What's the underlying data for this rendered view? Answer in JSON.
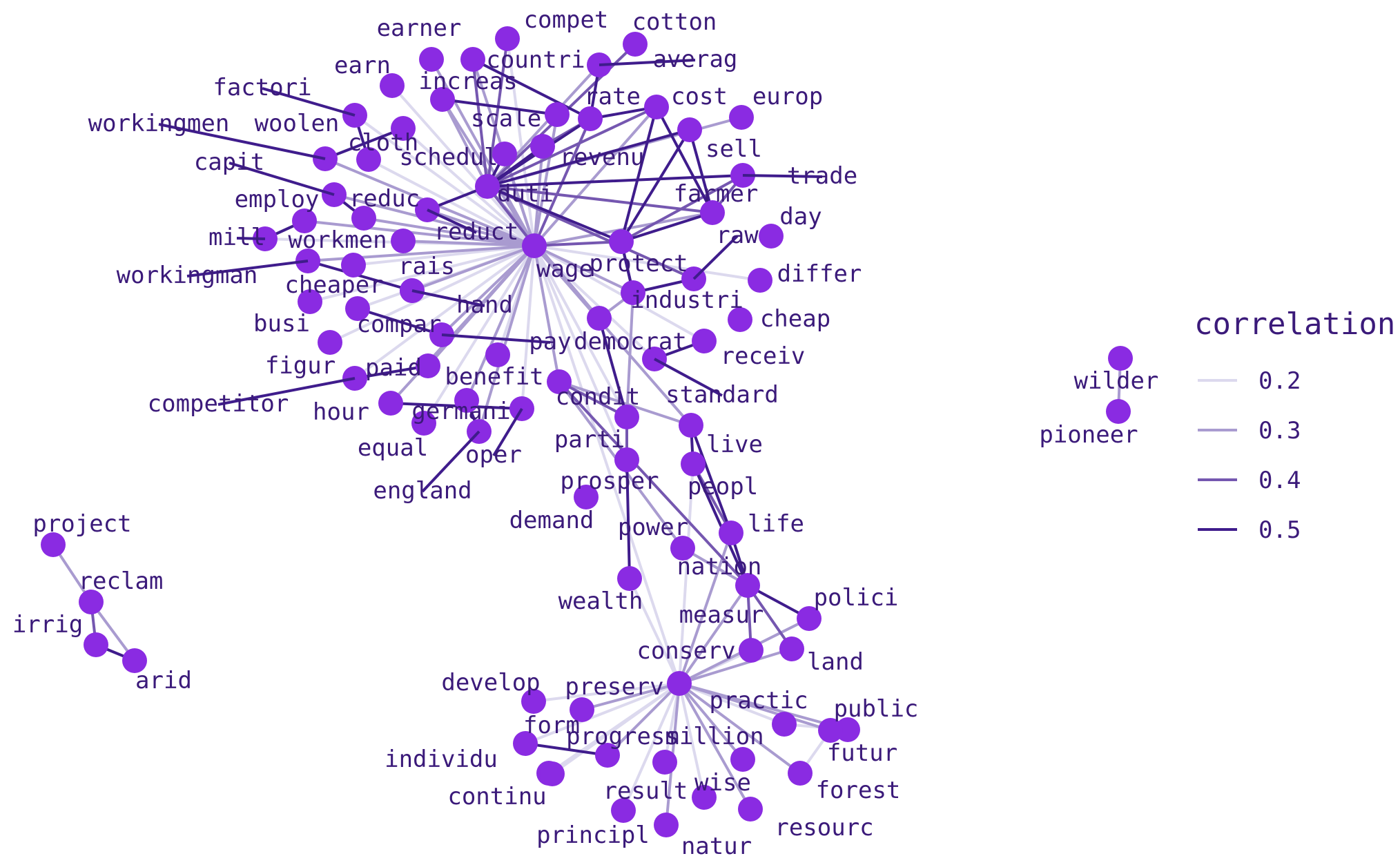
{
  "colors": {
    "node": "#8a2be2",
    "label": "#3b1a7a",
    "edge_levels": [
      "#dcd9ee",
      "#a99bd0",
      "#7557b0",
      "#3f1c8c"
    ]
  },
  "legend": {
    "title": "correlation",
    "entries": [
      {
        "value": 0.2,
        "label": "0.2"
      },
      {
        "value": 0.3,
        "label": "0.3"
      },
      {
        "value": 0.4,
        "label": "0.4"
      },
      {
        "value": 0.5,
        "label": "0.5"
      }
    ]
  },
  "nodes": [
    "earner",
    "compet",
    "cotton",
    "countri",
    "averag",
    "earn",
    "increas",
    "factori",
    "scale",
    "rate",
    "cost",
    "europ",
    "workingmen",
    "woolen",
    "cloth",
    "schedul",
    "revenu",
    "sell",
    "capit",
    "trade",
    "duti",
    "farmer",
    "reduc",
    "employ",
    "reduct",
    "day",
    "mill",
    "workmen",
    "raw",
    "wage",
    "protect",
    "workingman",
    "rais",
    "differ",
    "cheaper",
    "industri",
    "hand",
    "busi",
    "compar",
    "cheap",
    "pay",
    "democrat",
    "figur",
    "paid",
    "receiv",
    "benefit",
    "competitor",
    "standard",
    "condit",
    "hour",
    "germani",
    "parti",
    "live",
    "equal",
    "oper",
    "england",
    "prosper",
    "peopl",
    "demand",
    "power",
    "life",
    "nation",
    "wealth",
    "polici",
    "measur",
    "land",
    "conserv",
    "develop",
    "preserv",
    "practic",
    "public",
    "form",
    "progress",
    "million",
    "individu",
    "futur",
    "continu",
    "result",
    "wise",
    "forest",
    "principl",
    "resourc",
    "natur",
    "project",
    "reclam",
    "irrig",
    "arid",
    "wilder",
    "pioneer"
  ],
  "edges": [
    [
      "wage",
      "earner",
      0.25
    ],
    [
      "wage",
      "earn",
      0.22
    ],
    [
      "wage",
      "factori",
      0.24
    ],
    [
      "wage",
      "workingmen",
      0.28
    ],
    [
      "wage",
      "woolen",
      0.22
    ],
    [
      "wage",
      "cloth",
      0.24
    ],
    [
      "wage",
      "capit",
      0.26
    ],
    [
      "wage",
      "reduc",
      0.28
    ],
    [
      "wage",
      "employ",
      0.26
    ],
    [
      "wage",
      "mill",
      0.24
    ],
    [
      "wage",
      "workmen",
      0.3
    ],
    [
      "wage",
      "workingman",
      0.25
    ],
    [
      "wage",
      "cheaper",
      0.22
    ],
    [
      "wage",
      "busi",
      0.2
    ],
    [
      "wage",
      "compar",
      0.24
    ],
    [
      "wage",
      "figur",
      0.22
    ],
    [
      "wage",
      "paid",
      0.3
    ],
    [
      "wage",
      "competitor",
      0.22
    ],
    [
      "wage",
      "hour",
      0.28
    ],
    [
      "wage",
      "equal",
      0.2
    ],
    [
      "wage",
      "germani",
      0.26
    ],
    [
      "wage",
      "england",
      0.25
    ],
    [
      "wage",
      "oper",
      0.24
    ],
    [
      "wage",
      "benefit",
      0.22
    ],
    [
      "wage",
      "condit",
      0.28
    ],
    [
      "wage",
      "pay",
      0.3
    ],
    [
      "wage",
      "rais",
      0.28
    ],
    [
      "wage",
      "hand",
      0.24
    ],
    [
      "wage",
      "democrat",
      0.26
    ],
    [
      "wage",
      "increas",
      0.3
    ],
    [
      "wage",
      "scale",
      0.33
    ],
    [
      "wage",
      "schedul",
      0.3
    ],
    [
      "wage",
      "reduct",
      0.35
    ],
    [
      "wage",
      "duti",
      0.38
    ],
    [
      "wage",
      "revenu",
      0.32
    ],
    [
      "wage",
      "rate",
      0.36
    ],
    [
      "wage",
      "protect",
      0.38
    ],
    [
      "wage",
      "farmer",
      0.3
    ],
    [
      "wage",
      "industri",
      0.3
    ],
    [
      "wage",
      "cost",
      0.28
    ],
    [
      "wage",
      "countri",
      0.26
    ],
    [
      "wage",
      "compet",
      0.24
    ],
    [
      "wage",
      "differ",
      0.22
    ],
    [
      "wage",
      "live",
      0.28
    ],
    [
      "wage",
      "standard",
      0.24
    ],
    [
      "wage",
      "prosper",
      0.2
    ],
    [
      "wage",
      "parti",
      0.2
    ],
    [
      "wage",
      "receiv",
      0.22
    ],
    [
      "wage",
      "conserv",
      0.2
    ],
    [
      "duti",
      "revenu",
      0.45
    ],
    [
      "duti",
      "rate",
      0.45
    ],
    [
      "duti",
      "schedul",
      0.5
    ],
    [
      "duti",
      "trade",
      0.45
    ],
    [
      "duti",
      "farmer",
      0.4
    ],
    [
      "duti",
      "cost",
      0.42
    ],
    [
      "duti",
      "protect",
      0.5
    ],
    [
      "duti",
      "reduct",
      0.5
    ],
    [
      "duti",
      "increas",
      0.35
    ],
    [
      "duti",
      "sell",
      0.45
    ],
    [
      "duti",
      "raw",
      0.4
    ],
    [
      "duti",
      "europ",
      0.3
    ],
    [
      "duti",
      "averag",
      0.35
    ],
    [
      "duti",
      "cotton",
      0.4
    ],
    [
      "duti",
      "countri",
      0.42
    ],
    [
      "duti",
      "compet",
      0.42
    ],
    [
      "rate",
      "cost",
      0.45
    ],
    [
      "rate",
      "revenu",
      0.42
    ],
    [
      "rate",
      "averag",
      0.5
    ],
    [
      "rate",
      "countri",
      0.45
    ],
    [
      "protect",
      "farmer",
      0.5
    ],
    [
      "protect",
      "industri",
      0.5
    ],
    [
      "protect",
      "trade",
      0.42
    ],
    [
      "protect",
      "sell",
      0.45
    ],
    [
      "protect",
      "cost",
      0.45
    ],
    [
      "farmer",
      "sell",
      0.5
    ],
    [
      "farmer",
      "cost",
      0.45
    ],
    [
      "farmer",
      "trade",
      0.4
    ],
    [
      "industri",
      "protect",
      0.45
    ],
    [
      "industri",
      "democrat",
      0.3
    ],
    [
      "industri",
      "parti",
      0.3
    ],
    [
      "raw",
      "industri",
      0.45
    ],
    [
      "democrat",
      "parti",
      0.5
    ],
    [
      "democrat",
      "duti",
      0.3
    ],
    [
      "increas",
      "scale",
      0.5
    ],
    [
      "factori",
      "cloth",
      0.5
    ],
    [
      "workingmen",
      "woolen",
      0.5
    ],
    [
      "capit",
      "reduc",
      0.5
    ],
    [
      "employ",
      "mill",
      0.5
    ],
    [
      "workingman",
      "rais",
      0.5
    ],
    [
      "rais",
      "hand",
      0.5
    ],
    [
      "compar",
      "pay",
      0.5
    ],
    [
      "competitor",
      "paid",
      0.5
    ],
    [
      "germani",
      "england",
      0.5
    ],
    [
      "oper",
      "hour",
      0.5
    ],
    [
      "standard",
      "receiv",
      0.5
    ],
    [
      "condit",
      "parti",
      0.42
    ],
    [
      "parti",
      "prosper",
      0.4
    ],
    [
      "prosper",
      "wealth",
      0.5
    ],
    [
      "condit",
      "live",
      0.3
    ],
    [
      "live",
      "peopl",
      0.5
    ],
    [
      "live",
      "life",
      0.5
    ],
    [
      "peopl",
      "nation",
      0.45
    ],
    [
      "peopl",
      "life",
      0.4
    ],
    [
      "nation",
      "life",
      0.5
    ],
    [
      "nation",
      "polici",
      0.5
    ],
    [
      "nation",
      "measur",
      0.42
    ],
    [
      "nation",
      "land",
      0.4
    ],
    [
      "nation",
      "power",
      0.3
    ],
    [
      "nation",
      "condit",
      0.4
    ],
    [
      "nation",
      "conserv",
      0.3
    ],
    [
      "power",
      "condit",
      0.3
    ],
    [
      "life",
      "conserv",
      0.25
    ],
    [
      "measur",
      "conserv",
      0.22
    ],
    [
      "polici",
      "conserv",
      0.25
    ],
    [
      "land",
      "conserv",
      0.25
    ],
    [
      "peopl",
      "conserv",
      0.22
    ],
    [
      "conserv",
      "develop",
      0.2
    ],
    [
      "conserv",
      "preserv",
      0.3
    ],
    [
      "conserv",
      "practic",
      0.24
    ],
    [
      "conserv",
      "public",
      0.25
    ],
    [
      "conserv",
      "form",
      0.2
    ],
    [
      "conserv",
      "progress",
      0.25
    ],
    [
      "conserv",
      "million",
      0.22
    ],
    [
      "conserv",
      "individu",
      0.2
    ],
    [
      "conserv",
      "futur",
      0.28
    ],
    [
      "conserv",
      "continu",
      0.2
    ],
    [
      "conserv",
      "result",
      0.22
    ],
    [
      "conserv",
      "wise",
      0.26
    ],
    [
      "conserv",
      "forest",
      0.28
    ],
    [
      "conserv",
      "principl",
      0.2
    ],
    [
      "conserv",
      "resourc",
      0.3
    ],
    [
      "conserv",
      "natur",
      0.28
    ],
    [
      "conserv",
      "wealth",
      0.2
    ],
    [
      "form",
      "progress",
      0.5
    ],
    [
      "futur",
      "forest",
      0.22
    ],
    [
      "public",
      "practic",
      0.2
    ],
    [
      "project",
      "reclam",
      0.3
    ],
    [
      "reclam",
      "irrig",
      0.4
    ],
    [
      "irrig",
      "arid",
      0.5
    ],
    [
      "reclam",
      "arid",
      0.32
    ],
    [
      "wilder",
      "pioneer",
      0.35
    ]
  ]
}
